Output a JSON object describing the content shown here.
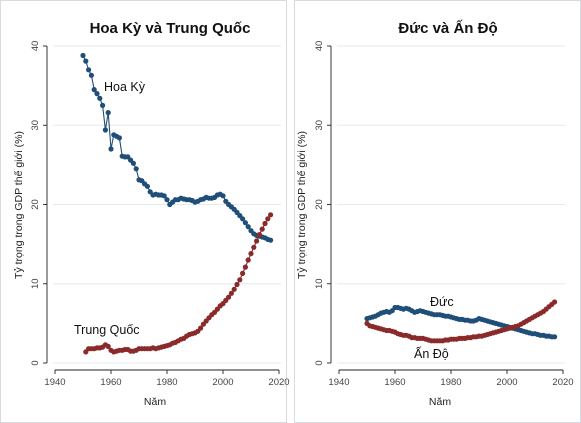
{
  "chart_data": [
    {
      "type": "scatter",
      "title": "Hoa Kỳ và Trung Quốc",
      "xlabel": "Năm",
      "ylabel": "Tỷ trọng trong GDP thế giới (%)",
      "xlim": [
        1940,
        2020
      ],
      "ylim": [
        0,
        40
      ],
      "xticks": [
        1940,
        1960,
        1980,
        2000,
        2020
      ],
      "yticks": [
        0,
        10,
        20,
        30,
        40
      ],
      "grid": true,
      "series": [
        {
          "name": "Hoa Kỳ",
          "color": "#1f4e79",
          "connected": true,
          "x": [
            1950,
            1951,
            1952,
            1953,
            1954,
            1955,
            1956,
            1957,
            1958,
            1959,
            1960,
            1961,
            1962,
            1963,
            1964,
            1965,
            1966,
            1967,
            1968,
            1969,
            1970,
            1971,
            1972,
            1973,
            1974,
            1975,
            1976,
            1977,
            1978,
            1979,
            1980,
            1981,
            1982,
            1983,
            1984,
            1985,
            1986,
            1987,
            1988,
            1989,
            1990,
            1991,
            1992,
            1993,
            1994,
            1995,
            1996,
            1997,
            1998,
            1999,
            2000,
            2001,
            2002,
            2003,
            2004,
            2005,
            2006,
            2007,
            2008,
            2009,
            2010,
            2011,
            2012,
            2013,
            2014,
            2015,
            2016,
            2017
          ],
          "y": [
            38.8,
            38.1,
            37.0,
            36.3,
            34.5,
            34.0,
            33.4,
            32.5,
            29.4,
            31.6,
            27.0,
            28.8,
            28.6,
            28.4,
            26.1,
            26.0,
            26.0,
            25.6,
            25.2,
            24.5,
            23.1,
            23.0,
            22.6,
            22.3,
            21.6,
            21.2,
            21.3,
            21.2,
            21.2,
            21.1,
            20.6,
            20.0,
            20.3,
            20.6,
            20.6,
            20.8,
            20.7,
            20.6,
            20.6,
            20.5,
            20.3,
            20.4,
            20.6,
            20.7,
            20.9,
            20.8,
            20.8,
            20.9,
            21.2,
            21.3,
            21.1,
            20.4,
            20.0,
            19.7,
            19.4,
            19.0,
            18.6,
            18.2,
            17.7,
            17.2,
            16.7,
            16.3,
            16.1,
            16.0,
            15.9,
            15.8,
            15.6,
            15.5
          ]
        },
        {
          "name": "Trung Quốc",
          "color": "#8b2a2a",
          "connected": true,
          "x": [
            1951,
            1952,
            1953,
            1954,
            1955,
            1956,
            1957,
            1958,
            1959,
            1960,
            1961,
            1962,
            1963,
            1964,
            1965,
            1966,
            1967,
            1968,
            1969,
            1970,
            1971,
            1972,
            1973,
            1974,
            1975,
            1976,
            1977,
            1978,
            1979,
            1980,
            1981,
            1982,
            1983,
            1984,
            1985,
            1986,
            1987,
            1988,
            1989,
            1990,
            1991,
            1992,
            1993,
            1994,
            1995,
            1996,
            1997,
            1998,
            1999,
            2000,
            2001,
            2002,
            2003,
            2004,
            2005,
            2006,
            2007,
            2008,
            2009,
            2010,
            2011,
            2012,
            2013,
            2014,
            2015,
            2016,
            2017
          ],
          "y": [
            1.4,
            1.8,
            1.8,
            1.8,
            1.9,
            1.9,
            2.0,
            2.3,
            2.1,
            1.6,
            1.4,
            1.5,
            1.6,
            1.6,
            1.7,
            1.7,
            1.5,
            1.5,
            1.6,
            1.8,
            1.8,
            1.8,
            1.8,
            1.8,
            1.9,
            1.8,
            1.9,
            2.0,
            2.1,
            2.2,
            2.3,
            2.5,
            2.6,
            2.8,
            3.0,
            3.1,
            3.4,
            3.6,
            3.7,
            3.8,
            4.0,
            4.4,
            4.9,
            5.3,
            5.7,
            6.1,
            6.4,
            6.8,
            7.2,
            7.5,
            7.9,
            8.3,
            8.8,
            9.3,
            9.9,
            10.5,
            11.3,
            12.1,
            13.0,
            13.8,
            14.6,
            15.4,
            16.2,
            16.9,
            17.6,
            18.2,
            18.7
          ]
        }
      ],
      "annotations": [
        {
          "text": "Hoa Kỳ",
          "series": "Hoa Kỳ"
        },
        {
          "text": "Trung Quốc",
          "series": "Trung Quốc"
        }
      ]
    },
    {
      "type": "scatter",
      "title": "Đức và Ấn Độ",
      "xlabel": "Năm",
      "ylabel": "Tỷ trọng trong GDP thế giới (%)",
      "xlim": [
        1940,
        2020
      ],
      "ylim": [
        0,
        40
      ],
      "xticks": [
        1940,
        1960,
        1980,
        2000,
        2020
      ],
      "yticks": [
        0,
        10,
        20,
        30,
        40
      ],
      "grid": true,
      "series": [
        {
          "name": "Đức",
          "color": "#1f4e79",
          "connected": true,
          "x": [
            1950,
            1951,
            1952,
            1953,
            1954,
            1955,
            1956,
            1957,
            1958,
            1959,
            1960,
            1961,
            1962,
            1963,
            1964,
            1965,
            1966,
            1967,
            1968,
            1969,
            1970,
            1971,
            1972,
            1973,
            1974,
            1975,
            1976,
            1977,
            1978,
            1979,
            1980,
            1981,
            1982,
            1983,
            1984,
            1985,
            1986,
            1987,
            1988,
            1989,
            1990,
            1991,
            1992,
            1993,
            1994,
            1995,
            1996,
            1997,
            1998,
            1999,
            2000,
            2001,
            2002,
            2003,
            2004,
            2005,
            2006,
            2007,
            2008,
            2009,
            2010,
            2011,
            2012,
            2013,
            2014,
            2015,
            2016,
            2017
          ],
          "y": [
            5.6,
            5.7,
            5.8,
            5.9,
            6.1,
            6.3,
            6.4,
            6.5,
            6.4,
            6.6,
            7.0,
            7.0,
            6.9,
            6.8,
            6.9,
            6.8,
            6.6,
            6.4,
            6.5,
            6.6,
            6.5,
            6.4,
            6.3,
            6.2,
            6.1,
            6.1,
            6.1,
            6.0,
            5.9,
            5.9,
            5.8,
            5.7,
            5.6,
            5.5,
            5.5,
            5.4,
            5.4,
            5.3,
            5.3,
            5.4,
            5.6,
            5.5,
            5.4,
            5.3,
            5.2,
            5.1,
            5.0,
            4.9,
            4.8,
            4.7,
            4.6,
            4.5,
            4.4,
            4.3,
            4.2,
            4.1,
            4.0,
            3.9,
            3.8,
            3.7,
            3.7,
            3.6,
            3.5,
            3.5,
            3.4,
            3.4,
            3.3,
            3.3
          ]
        },
        {
          "name": "Ấn Độ",
          "color": "#8b2a2a",
          "connected": true,
          "x": [
            1950,
            1951,
            1952,
            1953,
            1954,
            1955,
            1956,
            1957,
            1958,
            1959,
            1960,
            1961,
            1962,
            1963,
            1964,
            1965,
            1966,
            1967,
            1968,
            1969,
            1970,
            1971,
            1972,
            1973,
            1974,
            1975,
            1976,
            1977,
            1978,
            1979,
            1980,
            1981,
            1982,
            1983,
            1984,
            1985,
            1986,
            1987,
            1988,
            1989,
            1990,
            1991,
            1992,
            1993,
            1994,
            1995,
            1996,
            1997,
            1998,
            1999,
            2000,
            2001,
            2002,
            2003,
            2004,
            2005,
            2006,
            2007,
            2008,
            2009,
            2010,
            2011,
            2012,
            2013,
            2014,
            2015,
            2016,
            2017
          ],
          "y": [
            5.0,
            4.7,
            4.6,
            4.5,
            4.4,
            4.3,
            4.2,
            4.1,
            4.1,
            4.0,
            3.9,
            3.7,
            3.6,
            3.5,
            3.5,
            3.4,
            3.2,
            3.2,
            3.1,
            3.1,
            3.1,
            3.0,
            2.9,
            2.8,
            2.8,
            2.8,
            2.8,
            2.8,
            2.9,
            2.9,
            3.0,
            3.0,
            3.0,
            3.1,
            3.1,
            3.1,
            3.2,
            3.2,
            3.3,
            3.3,
            3.4,
            3.4,
            3.5,
            3.6,
            3.7,
            3.8,
            3.9,
            4.0,
            4.1,
            4.2,
            4.3,
            4.4,
            4.5,
            4.6,
            4.7,
            4.9,
            5.1,
            5.3,
            5.5,
            5.7,
            5.9,
            6.1,
            6.3,
            6.5,
            6.8,
            7.1,
            7.4,
            7.7
          ]
        }
      ],
      "annotations": [
        {
          "text": "Đức",
          "series": "Đức"
        },
        {
          "text": "Ấn Độ",
          "series": "Ấn Độ"
        }
      ]
    }
  ]
}
